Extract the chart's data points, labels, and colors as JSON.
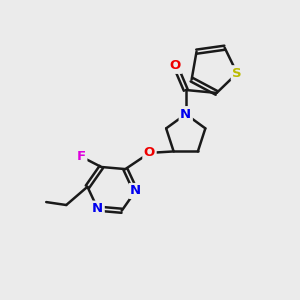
{
  "background_color": "#ebebeb",
  "bond_color": "#1a1a1a",
  "atom_colors": {
    "N": "#0000ee",
    "O": "#ee0000",
    "F": "#dd00dd",
    "S": "#bbbb00"
  },
  "figsize": [
    3.0,
    3.0
  ],
  "dpi": 100
}
